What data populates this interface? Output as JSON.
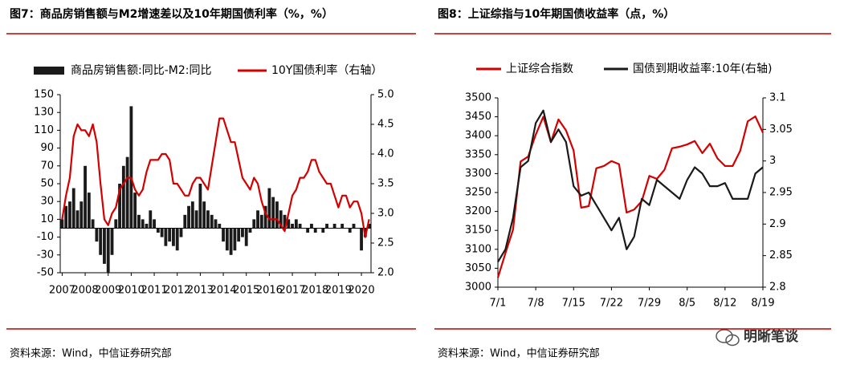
{
  "chart_data": [
    {
      "type": "bar",
      "title": "图7：商品房销售额与M2增速差以及10年期国债利率（%，%）",
      "source": "资料来源：Wind，中信证券研究部",
      "categories": [
        "2007",
        null,
        null,
        null,
        null,
        null,
        "2008",
        null,
        null,
        null,
        null,
        null,
        "2009",
        null,
        null,
        null,
        null,
        null,
        "2010",
        null,
        null,
        null,
        null,
        null,
        "2011",
        null,
        null,
        null,
        null,
        null,
        "2012",
        null,
        null,
        null,
        null,
        null,
        "2013",
        null,
        null,
        null,
        null,
        null,
        "2014",
        null,
        null,
        null,
        null,
        null,
        "2015",
        null,
        null,
        null,
        null,
        null,
        "2016",
        null,
        null,
        null,
        null,
        null,
        "2017",
        null,
        null,
        null,
        null,
        null,
        "2018",
        null,
        null,
        null,
        null,
        null,
        "2019",
        null,
        null,
        null,
        null,
        null,
        "2020",
        null,
        null
      ],
      "series": [
        {
          "name": "商品房销售额:同比-M2:同比",
          "type": "bar",
          "color": "#1a1a1a",
          "values": [
            10,
            25,
            30,
            45,
            20,
            30,
            70,
            40,
            10,
            -15,
            -30,
            -40,
            -50,
            -30,
            10,
            50,
            70,
            80,
            137,
            40,
            15,
            10,
            5,
            20,
            10,
            -5,
            -10,
            -20,
            -15,
            -20,
            -25,
            -10,
            15,
            25,
            30,
            20,
            50,
            30,
            20,
            15,
            10,
            5,
            -15,
            -25,
            -30,
            -25,
            -15,
            -10,
            -20,
            -5,
            10,
            20,
            15,
            25,
            45,
            35,
            30,
            20,
            15,
            10,
            5,
            10,
            5,
            0,
            -5,
            5,
            -5,
            0,
            -5,
            5,
            0,
            5,
            0,
            5,
            0,
            -5,
            5,
            0,
            -25,
            -10,
            5
          ]
        },
        {
          "name": "10Y国债利率（右轴）",
          "type": "line",
          "axis": "y2",
          "color": "#d40000",
          "values": [
            2.9,
            3.3,
            3.6,
            4.3,
            4.5,
            4.4,
            4.4,
            4.3,
            4.5,
            4.2,
            3.5,
            2.9,
            2.8,
            3.0,
            3.1,
            3.4,
            3.5,
            3.6,
            3.6,
            3.4,
            3.3,
            3.4,
            3.7,
            3.9,
            3.9,
            3.9,
            4.0,
            4.0,
            3.9,
            3.5,
            3.5,
            3.4,
            3.3,
            3.3,
            3.5,
            3.6,
            3.6,
            3.5,
            3.4,
            3.8,
            4.2,
            4.6,
            4.6,
            4.4,
            4.2,
            4.2,
            3.9,
            3.6,
            3.5,
            3.4,
            3.6,
            3.5,
            3.2,
            3.0,
            2.9,
            2.9,
            2.9,
            2.8,
            2.7,
            3.0,
            3.3,
            3.4,
            3.6,
            3.6,
            3.7,
            3.9,
            3.9,
            3.7,
            3.6,
            3.5,
            3.5,
            3.3,
            3.1,
            3.3,
            3.3,
            3.1,
            3.2,
            3.2,
            3.0,
            2.6,
            2.9
          ]
        }
      ],
      "ylim": [
        -50,
        150
      ],
      "yticks": [
        -50,
        -30,
        -10,
        10,
        30,
        50,
        70,
        90,
        110,
        130,
        150
      ],
      "y2lim": [
        2,
        5
      ],
      "y2ticks": [
        {
          "value": 2,
          "label": "2.0"
        },
        2.5,
        {
          "value": 3,
          "label": "3.0"
        },
        3.5,
        {
          "value": 4,
          "label": "4.0"
        },
        4.5,
        {
          "value": 5,
          "label": "5.0"
        }
      ]
    },
    {
      "type": "line",
      "title": "图8：上证综指与10年期国债收益率（点，%）",
      "source": "资料来源：Wind，中信证券研究部",
      "categories": [
        "7/1",
        null,
        null,
        null,
        null,
        "7/8",
        null,
        null,
        null,
        null,
        "7/15",
        null,
        null,
        null,
        null,
        "7/22",
        null,
        null,
        null,
        null,
        "7/29",
        null,
        null,
        null,
        null,
        "8/5",
        null,
        null,
        null,
        null,
        "8/12",
        null,
        null,
        null,
        null,
        "8/19"
      ],
      "series": [
        {
          "name": "上证综合指数",
          "color": "#d40000",
          "values": [
            3025,
            3090,
            3152,
            3332,
            3345,
            3403,
            3450,
            3383,
            3443,
            3414,
            3361,
            3210,
            3214,
            3314,
            3320,
            3333,
            3325,
            3197,
            3205,
            3227,
            3294,
            3286,
            3310,
            3367,
            3371,
            3377,
            3386,
            3354,
            3379,
            3340,
            3320,
            3320,
            3360,
            3438,
            3451,
            3408
          ]
        },
        {
          "name": "国债到期收益率:10年(右轴)",
          "axis": "y2",
          "color": "#1a1a1a",
          "values": [
            2.84,
            2.86,
            2.91,
            2.99,
            3.0,
            3.06,
            3.08,
            3.03,
            3.05,
            3.03,
            2.96,
            2.945,
            2.95,
            2.93,
            2.91,
            2.89,
            2.91,
            2.86,
            2.88,
            2.94,
            2.93,
            2.97,
            2.96,
            2.95,
            2.94,
            2.97,
            2.99,
            2.98,
            2.96,
            2.96,
            2.965,
            2.94,
            2.94,
            2.94,
            2.98,
            2.99
          ]
        }
      ],
      "ylim": [
        3000,
        3500
      ],
      "yticks": [
        3000,
        3050,
        3100,
        3150,
        3200,
        3250,
        3300,
        3350,
        3400,
        3450,
        3500
      ],
      "y2lim": [
        2.8,
        3.1
      ],
      "y2ticks": [
        2.8,
        2.85,
        2.9,
        2.95,
        3,
        3.05,
        3.1
      ]
    }
  ],
  "watermark": "明晰笔谈"
}
